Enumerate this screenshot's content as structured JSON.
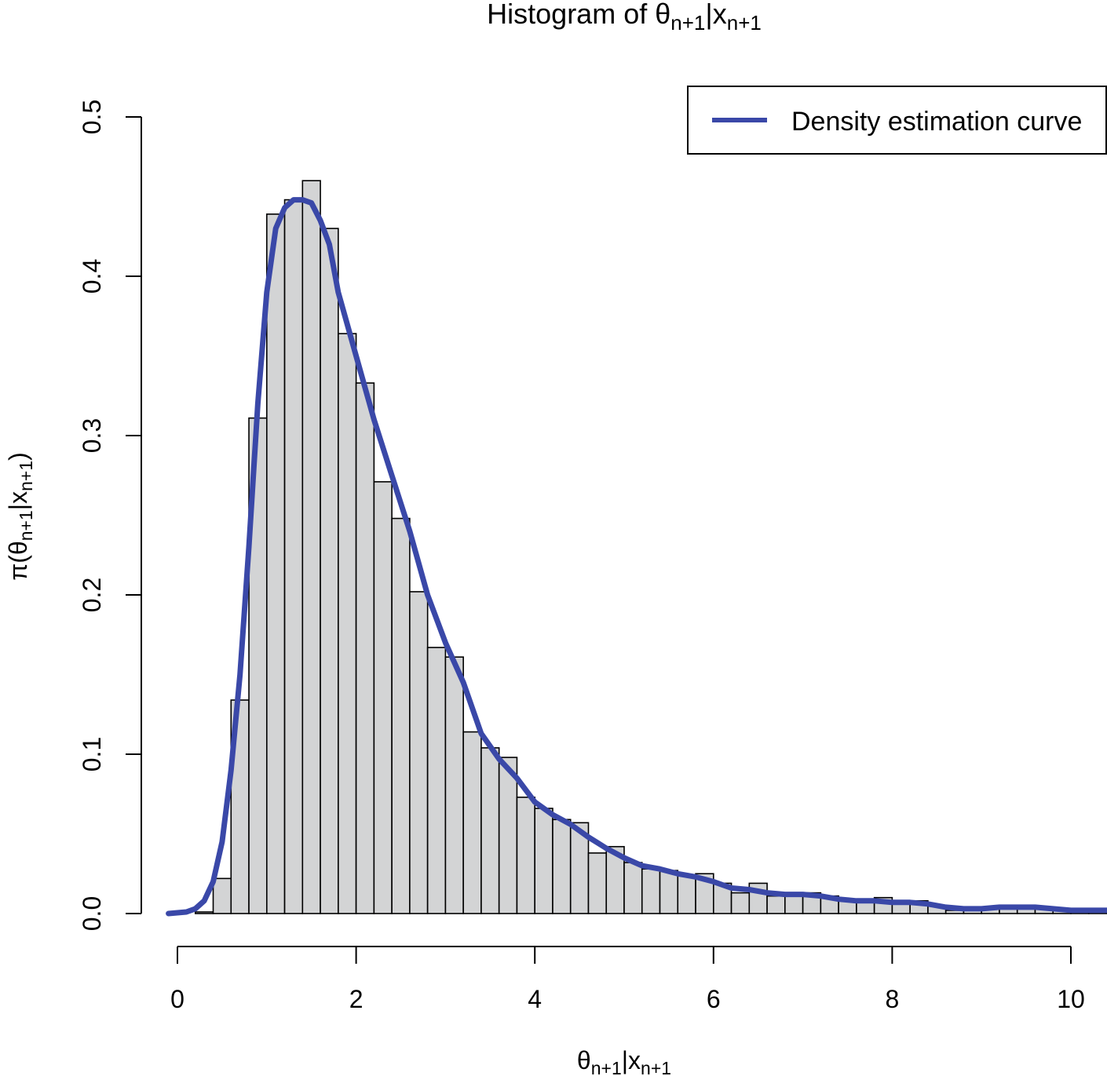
{
  "chart_data": {
    "type": "bar",
    "title": {
      "prefix": "Histogram of ",
      "theta": "θ",
      "sub1": "n+1",
      "mid": "|x",
      "sub2": "n+1"
    },
    "xlabel": {
      "theta": "θ",
      "sub1": "n+1",
      "mid": "|x",
      "sub2": "n+1"
    },
    "ylabel": {
      "pre": "π(θ",
      "sub1": "n+1",
      "mid": "|x",
      "sub2": "n+1",
      "post": ")"
    },
    "xlim": [
      -0.1,
      10.4
    ],
    "ylim": [
      0,
      0.5
    ],
    "xticks": [
      "0",
      "2",
      "4",
      "6",
      "8",
      "10"
    ],
    "xtick_values": [
      0,
      2,
      4,
      6,
      8,
      10
    ],
    "yticks": [
      "0.0",
      "0.1",
      "0.2",
      "0.3",
      "0.4",
      "0.5"
    ],
    "ytick_values": [
      0,
      0.1,
      0.2,
      0.3,
      0.4,
      0.5
    ],
    "bin_start": 0.2,
    "bin_width": 0.2,
    "values": [
      0.001,
      0.022,
      0.134,
      0.311,
      0.439,
      0.448,
      0.46,
      0.43,
      0.364,
      0.333,
      0.271,
      0.248,
      0.202,
      0.167,
      0.161,
      0.114,
      0.104,
      0.098,
      0.073,
      0.066,
      0.059,
      0.057,
      0.038,
      0.042,
      0.032,
      0.028,
      0.027,
      0.024,
      0.025,
      0.019,
      0.013,
      0.019,
      0.011,
      0.013,
      0.013,
      0.011,
      0.008,
      0.007,
      0.01,
      0.007,
      0.008,
      0.005,
      0.002,
      0.003,
      0.004,
      0.005,
      0.004,
      0.003,
      0.002,
      0.0015,
      0.0015
    ],
    "bar_color": "#d3d4d5",
    "density": {
      "name": "Density estimation curve",
      "color": "#3a48a8",
      "x": [
        -0.1,
        0.1,
        0.2,
        0.3,
        0.4,
        0.5,
        0.6,
        0.7,
        0.8,
        0.9,
        1.0,
        1.1,
        1.2,
        1.3,
        1.4,
        1.5,
        1.6,
        1.7,
        1.8,
        2.0,
        2.2,
        2.4,
        2.6,
        2.8,
        3.0,
        3.2,
        3.4,
        3.6,
        3.8,
        4.0,
        4.2,
        4.4,
        4.6,
        4.8,
        5.0,
        5.2,
        5.4,
        5.6,
        5.8,
        6.0,
        6.2,
        6.4,
        6.6,
        6.8,
        7.0,
        7.2,
        7.4,
        7.6,
        7.8,
        8.0,
        8.2,
        8.4,
        8.6,
        8.8,
        9.0,
        9.2,
        9.4,
        9.6,
        9.8,
        10.0,
        10.4
      ],
      "y": [
        0,
        0.001,
        0.003,
        0.008,
        0.02,
        0.045,
        0.09,
        0.15,
        0.23,
        0.32,
        0.39,
        0.43,
        0.443,
        0.448,
        0.448,
        0.446,
        0.435,
        0.42,
        0.39,
        0.35,
        0.31,
        0.275,
        0.24,
        0.2,
        0.17,
        0.145,
        0.113,
        0.097,
        0.085,
        0.07,
        0.062,
        0.056,
        0.048,
        0.041,
        0.035,
        0.03,
        0.028,
        0.025,
        0.023,
        0.02,
        0.016,
        0.015,
        0.013,
        0.012,
        0.012,
        0.011,
        0.009,
        0.008,
        0.008,
        0.007,
        0.007,
        0.006,
        0.004,
        0.003,
        0.003,
        0.004,
        0.004,
        0.004,
        0.003,
        0.002,
        0.002
      ]
    },
    "legend": {
      "label": "Density estimation curve",
      "placement": "top-right"
    },
    "grid": false
  }
}
